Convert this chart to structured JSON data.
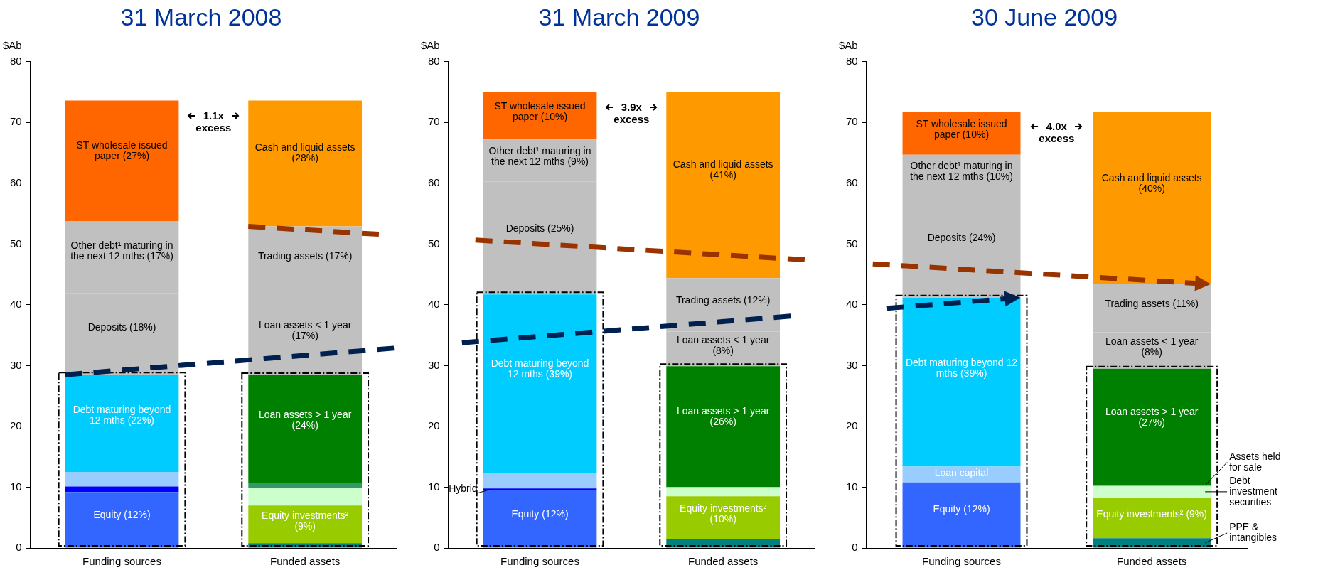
{
  "chart_data": [
    {
      "type": "bar",
      "stacked": true,
      "title": "31 March 2008",
      "ylabel": "$Ab",
      "categories": [
        "Funding sources",
        "Funded assets"
      ],
      "ylim": [
        0,
        80
      ],
      "yticks": [
        0,
        10,
        20,
        30,
        40,
        50,
        60,
        70,
        80
      ],
      "annotations": [
        "1.1x excess"
      ],
      "series": [
        {
          "name": "Equity (12%)",
          "color": "#3366ff",
          "values": [
            9.2,
            null
          ]
        },
        {
          "color": "#0000ff",
          "values": [
            0.9,
            null
          ]
        },
        {
          "color": "#99ccff",
          "values": [
            2.4,
            null
          ]
        },
        {
          "name": "Debt maturing beyond 12 mths (22%)",
          "color": "#00ccff",
          "values": [
            16.0,
            null
          ]
        },
        {
          "name": "Deposits (18%)",
          "color": "#c0c0c0",
          "values": [
            13.4,
            null
          ]
        },
        {
          "name": "Other debt¹ maturing in the next 12 mths (17%)",
          "color": "#c0c0c0",
          "values": [
            11.9,
            null
          ]
        },
        {
          "name": "ST wholesale issued paper (27%)",
          "color": "#ff6600",
          "values": [
            19.8,
            null
          ]
        },
        {
          "color": "#008080",
          "values": [
            null,
            0.8
          ]
        },
        {
          "name": "Equity investments² (9%)",
          "color": "#99cc00",
          "values": [
            null,
            6.2
          ]
        },
        {
          "color": "#ccffcc",
          "values": [
            null,
            2.9
          ]
        },
        {
          "color": "#339966",
          "values": [
            null,
            0.8
          ]
        },
        {
          "name": "Loan assets > 1 year (24%)",
          "color": "#008000",
          "values": [
            null,
            17.7
          ]
        },
        {
          "name": "Loan assets < 1 year (17%)",
          "color": "#c0c0c0",
          "values": [
            null,
            12.6
          ]
        },
        {
          "name": "Trading assets (17%)",
          "color": "#c0c0c0",
          "values": [
            null,
            11.9
          ]
        },
        {
          "name": "Cash and liquid assets (28%)",
          "color": "#ff9900",
          "values": [
            null,
            20.7
          ]
        }
      ]
    },
    {
      "type": "bar",
      "stacked": true,
      "title": "31 March 2009",
      "ylabel": "$Ab",
      "categories": [
        "Funding sources",
        "Funded assets"
      ],
      "ylim": [
        0,
        80
      ],
      "yticks": [
        0,
        10,
        20,
        30,
        40,
        50,
        60,
        70,
        80
      ],
      "annotations": [
        "3.9x excess"
      ],
      "series": [
        {
          "name": "Equity (12%)",
          "color": "#3366ff",
          "values": [
            9.5,
            null
          ]
        },
        {
          "name": "Hybrid",
          "color": "#0000ff",
          "values": [
            0.3,
            null
          ]
        },
        {
          "color": "#99ccff",
          "values": [
            2.6,
            null
          ]
        },
        {
          "name": "Debt maturing beyond 12 mths (39%)",
          "color": "#00ccff",
          "values": [
            29.3,
            null
          ]
        },
        {
          "name": "Deposits (25%)",
          "color": "#c0c0c0",
          "values": [
            18.6,
            null
          ]
        },
        {
          "name": "Other debt¹ maturing in the next 12 mths (9%)",
          "color": "#c0c0c0",
          "values": [
            6.9,
            null
          ]
        },
        {
          "name": "ST wholesale issued paper (10%)",
          "color": "#ff6600",
          "values": [
            7.8,
            null
          ]
        },
        {
          "color": "#008080",
          "values": [
            null,
            1.4
          ]
        },
        {
          "name": "Equity investments² (10%)",
          "color": "#99cc00",
          "values": [
            null,
            7.1
          ]
        },
        {
          "color": "#ccffcc",
          "values": [
            null,
            1.5
          ]
        },
        {
          "name": "Loan assets > 1 year (26%)",
          "color": "#008000",
          "values": [
            null,
            19.9
          ]
        },
        {
          "name": "Loan assets < 1 year (8%)",
          "color": "#c0c0c0",
          "values": [
            null,
            5.7
          ]
        },
        {
          "name": "Trading assets (12%)",
          "color": "#c0c0c0",
          "values": [
            null,
            8.8
          ]
        },
        {
          "name": "Cash and liquid assets (41%)",
          "color": "#ff9900",
          "values": [
            null,
            30.6
          ]
        }
      ]
    },
    {
      "type": "bar",
      "stacked": true,
      "title": "30 June 2009",
      "ylabel": "$Ab",
      "categories": [
        "Funding sources",
        "Funded assets"
      ],
      "ylim": [
        0,
        80
      ],
      "yticks": [
        0,
        10,
        20,
        30,
        40,
        50,
        60,
        70,
        80
      ],
      "annotations": [
        "4.0x excess"
      ],
      "series": [
        {
          "name": "Equity (12%)",
          "color": "#3366ff",
          "values": [
            10.8,
            null
          ]
        },
        {
          "name": "Loan capital",
          "color": "#99ccff",
          "values": [
            2.6,
            null
          ]
        },
        {
          "name": "Debt maturing beyond 12 mths (39%)",
          "color": "#00ccff",
          "values": [
            27.8,
            null
          ]
        },
        {
          "name": "Deposits (24%)",
          "color": "#c0c0c0",
          "values": [
            16.8,
            null
          ]
        },
        {
          "name": "Other debt¹ maturing in the next 12 mths (10%)",
          "color": "#c0c0c0",
          "values": [
            6.7,
            null
          ]
        },
        {
          "name": "ST wholesale issued paper (10%)",
          "color": "#ff6600",
          "values": [
            7.1,
            null
          ]
        },
        {
          "name": "PPE & intangibles",
          "color": "#008080",
          "values": [
            null,
            1.6
          ]
        },
        {
          "name": "Equity investments² (9%)",
          "color": "#99cc00",
          "values": [
            null,
            6.7
          ]
        },
        {
          "name": "Debt investment securities",
          "color": "#ccffcc",
          "values": [
            null,
            1.9
          ]
        },
        {
          "name": "Assets held for sale",
          "color": "#339966",
          "values": [
            null,
            0.2
          ]
        },
        {
          "name": "Loan assets > 1 year (27%)",
          "color": "#008000",
          "values": [
            null,
            19.1
          ]
        },
        {
          "name": "Loan assets < 1 year (8%)",
          "color": "#c0c0c0",
          "values": [
            null,
            6.0
          ]
        },
        {
          "name": "Trading assets (11%)",
          "color": "#c0c0c0",
          "values": [
            null,
            7.9
          ]
        },
        {
          "name": "Cash and liquid assets (40%)",
          "color": "#ff9900",
          "values": [
            null,
            28.4
          ]
        }
      ]
    }
  ]
}
